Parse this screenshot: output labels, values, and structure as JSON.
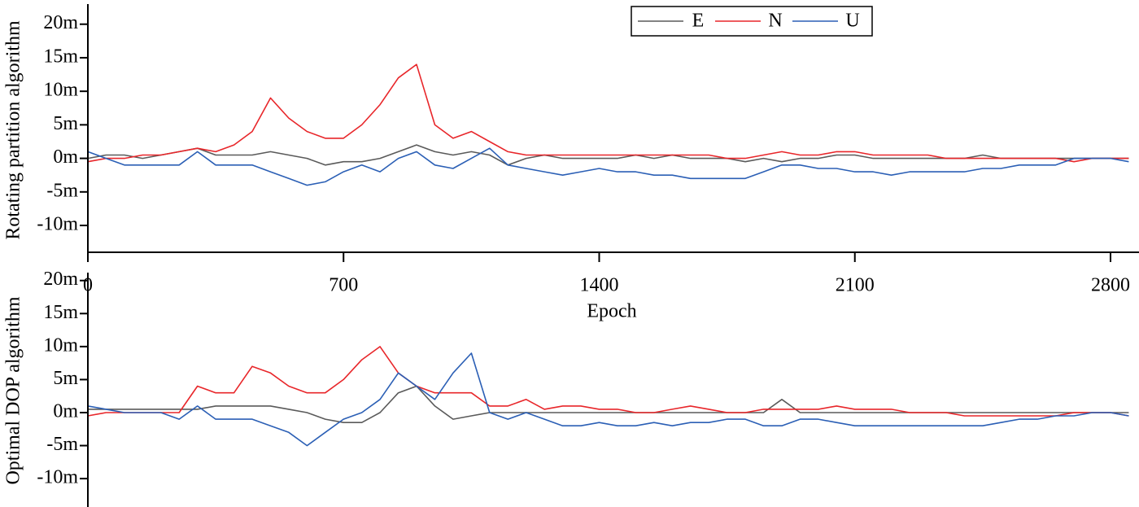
{
  "chart_data": [
    {
      "type": "line",
      "ylabel": "Rotating partition algorithm",
      "xlabel": "Epoch",
      "xlim": [
        0,
        2878
      ],
      "xticks": [
        0,
        700,
        1400,
        2100,
        2800
      ],
      "ylim": [
        -14,
        23
      ],
      "yticks": [
        {
          "value": 20,
          "label": "20m"
        },
        {
          "value": 15,
          "label": "15m"
        },
        {
          "value": 10,
          "label": "10m"
        },
        {
          "value": 5,
          "label": "5m"
        },
        {
          "value": 0,
          "label": "0m"
        },
        {
          "value": -5,
          "label": "-5m"
        },
        {
          "value": -10,
          "label": "-10m"
        }
      ],
      "x": [
        0,
        50,
        100,
        150,
        200,
        250,
        300,
        350,
        400,
        450,
        500,
        550,
        600,
        650,
        700,
        750,
        800,
        850,
        900,
        950,
        1000,
        1050,
        1100,
        1150,
        1200,
        1250,
        1300,
        1350,
        1400,
        1450,
        1500,
        1550,
        1600,
        1650,
        1700,
        1750,
        1800,
        1850,
        1900,
        1950,
        2000,
        2050,
        2100,
        2150,
        2200,
        2250,
        2300,
        2350,
        2400,
        2450,
        2500,
        2550,
        2600,
        2650,
        2700,
        2750,
        2800,
        2850
      ],
      "series": [
        {
          "name": "E",
          "color": "#5a5a5a",
          "values": [
            0,
            0.5,
            0.5,
            0,
            0.5,
            1,
            1.5,
            0.5,
            0.5,
            0.5,
            1,
            0.5,
            0,
            -1,
            -0.5,
            -0.5,
            0,
            1,
            2,
            1,
            0.5,
            1,
            0.5,
            -1,
            0,
            0.5,
            0,
            0,
            0,
            0,
            0.5,
            0,
            0.5,
            0,
            0,
            0,
            -0.5,
            0,
            -0.5,
            0,
            0,
            0.5,
            0.5,
            0,
            0,
            0,
            0,
            0,
            0,
            0.5,
            0,
            0,
            0,
            0,
            0,
            0,
            0,
            0
          ]
        },
        {
          "name": "N",
          "color": "#e8262a",
          "values": [
            -0.5,
            0,
            0,
            0.5,
            0.5,
            1,
            1.5,
            1,
            2,
            4,
            9,
            6,
            4,
            3,
            3,
            5,
            8,
            12,
            14,
            5,
            3,
            4,
            2.5,
            1,
            0.5,
            0.5,
            0.5,
            0.5,
            0.5,
            0.5,
            0.5,
            0.5,
            0.5,
            0.5,
            0.5,
            0,
            0,
            0.5,
            1,
            0.5,
            0.5,
            1,
            1,
            0.5,
            0.5,
            0.5,
            0.5,
            0,
            0,
            0,
            0,
            0,
            0,
            0,
            -0.5,
            0,
            0,
            0
          ]
        },
        {
          "name": "U",
          "color": "#2b5fb5",
          "values": [
            1,
            0,
            -1,
            -1,
            -1,
            -1,
            1,
            -1,
            -1,
            -1,
            -2,
            -3,
            -4,
            -3.5,
            -2,
            -1,
            -2,
            0,
            1,
            -1,
            -1.5,
            0,
            1.5,
            -1,
            -1.5,
            -2,
            -2.5,
            -2,
            -1.5,
            -2,
            -2,
            -2.5,
            -2.5,
            -3,
            -3,
            -3,
            -3,
            -2,
            -1,
            -1,
            -1.5,
            -1.5,
            -2,
            -2,
            -2.5,
            -2,
            -2,
            -2,
            -2,
            -1.5,
            -1.5,
            -1,
            -1,
            -1,
            0,
            0,
            0,
            -0.5
          ]
        }
      ]
    },
    {
      "type": "line",
      "ylabel": "Optimal DOP algorithm",
      "xlim": [
        0,
        2878
      ],
      "ylim": [
        -14.3,
        21.2
      ],
      "yticks": [
        {
          "value": 20,
          "label": "20m"
        },
        {
          "value": 15,
          "label": "15m"
        },
        {
          "value": 10,
          "label": "10m"
        },
        {
          "value": 5,
          "label": "5m"
        },
        {
          "value": 0,
          "label": "0m"
        },
        {
          "value": -5,
          "label": "-5m"
        },
        {
          "value": -10,
          "label": "-10m"
        }
      ],
      "x": [
        0,
        50,
        100,
        150,
        200,
        250,
        300,
        350,
        400,
        450,
        500,
        550,
        600,
        650,
        700,
        750,
        800,
        850,
        900,
        950,
        1000,
        1050,
        1100,
        1150,
        1200,
        1250,
        1300,
        1350,
        1400,
        1450,
        1500,
        1550,
        1600,
        1650,
        1700,
        1750,
        1800,
        1850,
        1900,
        1950,
        2000,
        2050,
        2100,
        2150,
        2200,
        2250,
        2300,
        2350,
        2400,
        2450,
        2500,
        2550,
        2600,
        2650,
        2700,
        2750,
        2800,
        2850
      ],
      "series": [
        {
          "color": "#5a5a5a",
          "values": [
            0.5,
            0.5,
            0.5,
            0.5,
            0.5,
            0.5,
            0.5,
            1,
            1,
            1,
            1,
            0.5,
            0,
            -1,
            -1.5,
            -1.5,
            0,
            3,
            4,
            1,
            -1,
            -0.5,
            0,
            0,
            0,
            0,
            0,
            0,
            0,
            0,
            0,
            0,
            0,
            0,
            0,
            0,
            0,
            0,
            2,
            0,
            0,
            0,
            0,
            0,
            0,
            0,
            0,
            0,
            0,
            0,
            0,
            0,
            0,
            0,
            0,
            0,
            0,
            0
          ]
        },
        {
          "color": "#e8262a",
          "values": [
            -0.5,
            0,
            0,
            0,
            0,
            0,
            4,
            3,
            3,
            7,
            6,
            4,
            3,
            3,
            5,
            8,
            10,
            6,
            4,
            3,
            3,
            3,
            1,
            1,
            2,
            0.5,
            1,
            1,
            0.5,
            0.5,
            0,
            0,
            0.5,
            1,
            0.5,
            0,
            0,
            0.5,
            0.5,
            0.5,
            0.5,
            1,
            0.5,
            0.5,
            0.5,
            0,
            0,
            0,
            -0.5,
            -0.5,
            -0.5,
            -0.5,
            -0.5,
            -0.5,
            0,
            0,
            0,
            -0.5
          ]
        },
        {
          "color": "#2b5fb5",
          "values": [
            1,
            0.5,
            0,
            0,
            0,
            -1,
            1,
            -1,
            -1,
            -1,
            -2,
            -3,
            -5,
            -3,
            -1,
            0,
            2,
            6,
            4,
            2,
            6,
            9,
            0,
            -1,
            0,
            -1,
            -2,
            -2,
            -1.5,
            -2,
            -2,
            -1.5,
            -2,
            -1.5,
            -1.5,
            -1,
            -1,
            -2,
            -2,
            -1,
            -1,
            -1.5,
            -2,
            -2,
            -2,
            -2,
            -2,
            -2,
            -2,
            -2,
            -1.5,
            -1,
            -1,
            -0.5,
            -0.5,
            0,
            0,
            -0.5
          ]
        }
      ]
    }
  ]
}
